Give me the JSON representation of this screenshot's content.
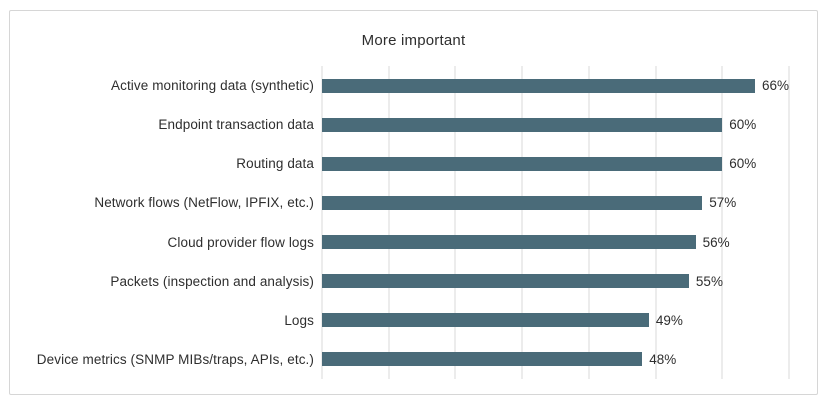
{
  "card": {
    "background": "#ffffff",
    "border_color": "#d6d6d6"
  },
  "chart_data": {
    "type": "bar",
    "orientation": "horizontal",
    "title": "More important",
    "categories": [
      "Active monitoring data (synthetic)",
      "Endpoint transaction data",
      "Routing data",
      "Network flows (NetFlow, IPFIX, etc.)",
      "Cloud provider flow logs",
      "Packets (inspection and analysis)",
      "Logs",
      "Device metrics (SNMP MIBs/traps, APIs, etc.)"
    ],
    "values": [
      66,
      60,
      60,
      57,
      56,
      55,
      49,
      48
    ],
    "value_labels": [
      "66%",
      "60%",
      "60%",
      "57%",
      "56%",
      "55%",
      "49%",
      "48%"
    ],
    "xlabel": "",
    "ylabel": "",
    "xlim": [
      0,
      70
    ],
    "gridline_step": 10,
    "grid": true,
    "legend": false,
    "bar_color": "#4a6b79",
    "gridline_color": "#d9d9d9",
    "text_color": "#2e2e2e"
  }
}
